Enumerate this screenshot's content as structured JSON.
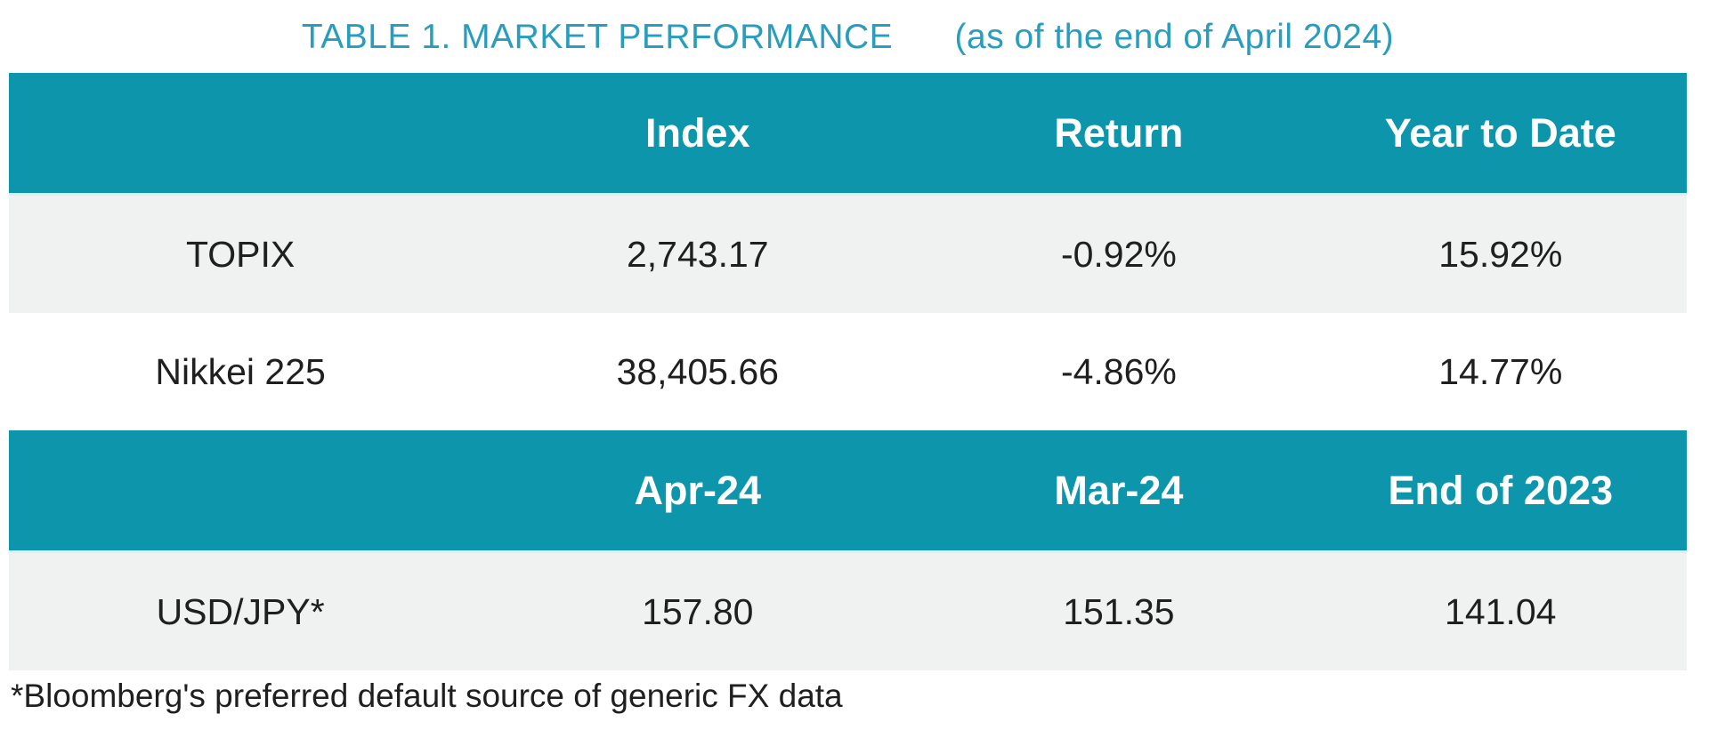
{
  "title": {
    "main": "TABLE 1. MARKET PERFORMANCE",
    "suffix": "(as of the end of April 2024)"
  },
  "colors": {
    "teal_header": "#0d95ab",
    "title_text": "#289dbe",
    "header_text": "#ffffff",
    "row_gray": "#f0f1f1",
    "row_white": "#ffffff",
    "separator": "#ddeff1",
    "body_text": "#1f1f1f"
  },
  "table": {
    "sections": [
      {
        "header": [
          "",
          "Index",
          "Return",
          "Year to Date"
        ],
        "rows": [
          [
            "TOPIX",
            "2,743.17",
            "-0.92%",
            "15.92%"
          ],
          [
            "Nikkei 225",
            "38,405.66",
            "-4.86%",
            "14.77%"
          ]
        ]
      },
      {
        "header": [
          "",
          "Apr-24",
          "Mar-24",
          "End of 2023"
        ],
        "rows": [
          [
            "USD/JPY*",
            "157.80",
            "151.35",
            "141.04"
          ]
        ]
      }
    ]
  },
  "footnote": "*Bloomberg's preferred default source of generic FX data",
  "chart_data": {
    "type": "table",
    "title": "TABLE 1. MARKET PERFORMANCE (as of the end of April 2024)",
    "sections": [
      {
        "columns": [
          "",
          "Index",
          "Return",
          "Year to Date"
        ],
        "rows": [
          {
            "name": "TOPIX",
            "index": 2743.17,
            "return_pct": -0.92,
            "ytd_pct": 15.92
          },
          {
            "name": "Nikkei 225",
            "index": 38405.66,
            "return_pct": -4.86,
            "ytd_pct": 14.77
          }
        ]
      },
      {
        "columns": [
          "",
          "Apr-24",
          "Mar-24",
          "End of 2023"
        ],
        "rows": [
          {
            "name": "USD/JPY*",
            "apr_24": 157.8,
            "mar_24": 151.35,
            "end_of_2023": 141.04
          }
        ]
      }
    ]
  }
}
